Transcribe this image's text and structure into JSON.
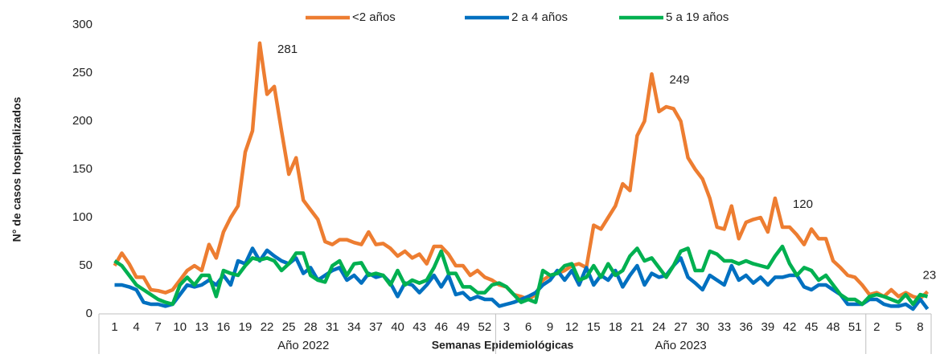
{
  "chart_data": {
    "type": "line",
    "y_label": "N° de casos hospitalizados",
    "x_label": "Semanas Epidemiológicas",
    "x_groups": [
      "Año 2022",
      "Año 2023",
      null
    ],
    "categories": [
      "1",
      null,
      null,
      "4",
      null,
      null,
      "7",
      null,
      null,
      "10",
      null,
      null,
      "13",
      null,
      null,
      "16",
      null,
      null,
      "19",
      null,
      null,
      "22",
      null,
      null,
      "25",
      null,
      null,
      "28",
      null,
      null,
      "31",
      null,
      null,
      "34",
      null,
      null,
      "37",
      null,
      null,
      "40",
      null,
      null,
      "43",
      null,
      null,
      "46",
      null,
      null,
      "49",
      null,
      null,
      "52",
      null,
      null,
      "3",
      null,
      null,
      "6",
      null,
      null,
      "9",
      null,
      null,
      "12",
      null,
      null,
      "15",
      null,
      null,
      "18",
      null,
      null,
      "21",
      null,
      null,
      "24",
      null,
      null,
      "27",
      null,
      null,
      "30",
      null,
      null,
      "33",
      null,
      null,
      "36",
      null,
      null,
      "39",
      null,
      null,
      "42",
      null,
      null,
      "45",
      null,
      null,
      "48",
      null,
      null,
      "51",
      null,
      null,
      "2",
      null,
      null,
      "5",
      null,
      null,
      "8",
      null
    ],
    "series": [
      {
        "name": "<2  años",
        "color": "#ed7d31",
        "values": [
          50,
          63,
          52,
          38,
          38,
          25,
          24,
          22,
          25,
          35,
          45,
          50,
          45,
          72,
          58,
          85,
          100,
          112,
          168,
          190,
          281,
          228,
          236,
          190,
          145,
          162,
          118,
          108,
          98,
          75,
          72,
          77,
          77,
          74,
          72,
          85,
          72,
          73,
          68,
          60,
          65,
          58,
          62,
          52,
          70,
          70,
          62,
          50,
          50,
          40,
          45,
          38,
          35,
          30,
          28,
          20,
          18,
          15,
          20,
          35,
          40,
          42,
          45,
          50,
          52,
          48,
          92,
          88,
          100,
          112,
          135,
          128,
          185,
          200,
          249,
          210,
          215,
          213,
          200,
          162,
          150,
          140,
          120,
          90,
          88,
          112,
          78,
          95,
          98,
          100,
          85,
          120,
          90,
          90,
          82,
          72,
          88,
          78,
          78,
          55,
          48,
          40,
          38,
          30,
          20,
          22,
          18,
          25,
          18,
          22,
          18,
          16,
          23
        ],
        "value_labels": [
          null,
          null,
          null,
          null,
          null,
          null,
          null,
          null,
          null,
          null,
          null,
          null,
          null,
          null,
          null,
          null,
          null,
          null,
          null,
          null,
          "281",
          null,
          null,
          null,
          null,
          null,
          null,
          null,
          null,
          null,
          null,
          null,
          null,
          null,
          null,
          null,
          null,
          null,
          null,
          null,
          null,
          null,
          null,
          null,
          null,
          null,
          null,
          null,
          null,
          null,
          null,
          null,
          null,
          null,
          null,
          null,
          null,
          null,
          null,
          null,
          null,
          null,
          null,
          null,
          null,
          null,
          null,
          null,
          null,
          null,
          null,
          null,
          null,
          null,
          "249",
          null,
          null,
          null,
          null,
          null,
          null,
          null,
          null,
          null,
          null,
          null,
          null,
          null,
          null,
          null,
          null,
          "120",
          null,
          null,
          null,
          null,
          null,
          null,
          null,
          null,
          null,
          null,
          null,
          null,
          null,
          null,
          null,
          null,
          null,
          null,
          null,
          null,
          "23"
        ]
      },
      {
        "name": "2 a 4 años",
        "color": "#0070c0",
        "values": [
          30,
          30,
          28,
          25,
          12,
          10,
          10,
          8,
          10,
          20,
          30,
          28,
          30,
          35,
          30,
          40,
          30,
          55,
          52,
          68,
          55,
          66,
          60,
          55,
          52,
          58,
          42,
          48,
          35,
          40,
          45,
          48,
          35,
          40,
          32,
          42,
          38,
          40,
          32,
          18,
          32,
          30,
          22,
          30,
          40,
          28,
          40,
          20,
          22,
          15,
          18,
          15,
          15,
          8,
          10,
          12,
          15,
          18,
          22,
          30,
          35,
          45,
          35,
          45,
          30,
          48,
          30,
          40,
          35,
          45,
          28,
          40,
          50,
          30,
          42,
          38,
          40,
          50,
          58,
          38,
          32,
          25,
          40,
          35,
          30,
          50,
          35,
          40,
          32,
          38,
          30,
          38,
          38,
          40,
          40,
          28,
          25,
          30,
          30,
          25,
          20,
          10,
          10,
          10,
          15,
          15,
          10,
          8,
          8,
          10,
          5,
          15,
          5
        ]
      },
      {
        "name": "5 a 19 años",
        "color": "#00b050",
        "values": [
          55,
          50,
          40,
          30,
          25,
          20,
          15,
          12,
          10,
          30,
          38,
          30,
          40,
          40,
          18,
          45,
          42,
          40,
          50,
          58,
          56,
          58,
          55,
          45,
          52,
          63,
          63,
          40,
          35,
          33,
          50,
          55,
          40,
          52,
          53,
          40,
          42,
          40,
          30,
          45,
          30,
          35,
          32,
          35,
          48,
          65,
          42,
          42,
          28,
          28,
          22,
          22,
          30,
          32,
          28,
          20,
          12,
          15,
          12,
          45,
          40,
          42,
          50,
          52,
          35,
          38,
          50,
          38,
          52,
          40,
          45,
          60,
          68,
          55,
          58,
          48,
          38,
          50,
          65,
          68,
          45,
          45,
          65,
          62,
          55,
          55,
          52,
          55,
          52,
          50,
          48,
          60,
          70,
          52,
          40,
          48,
          45,
          35,
          40,
          30,
          20,
          15,
          15,
          10,
          18,
          20,
          18,
          15,
          12,
          20,
          10,
          20,
          18
        ]
      }
    ],
    "ylim": [
      0,
      300
    ],
    "yticks": [
      0,
      50,
      100,
      150,
      200,
      250,
      300
    ],
    "grid": false,
    "legend": "top"
  }
}
